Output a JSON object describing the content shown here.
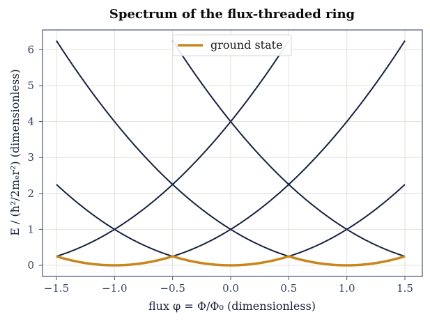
{
  "chart_data": {
    "type": "line",
    "title": "Spectrum of the flux-threaded ring",
    "xlabel": "flux φ = Φ/Φ₀ (dimensionless)",
    "ylabel": "E / (ħ²/2mₑr²) (dimensionless)",
    "xlim": [
      -1.62,
      1.65
    ],
    "ylim": [
      -0.31,
      6.55
    ],
    "xticks": [
      -1.5,
      -1.0,
      -0.5,
      0.0,
      0.5,
      1.0,
      1.5
    ],
    "xtick_labels": [
      "−1.5",
      "−1.0",
      "−0.5",
      "0.0",
      "0.5",
      "1.0",
      "1.5"
    ],
    "yticks": [
      0,
      1,
      2,
      3,
      4,
      5,
      6
    ],
    "ytick_labels": [
      "0",
      "1",
      "2",
      "3",
      "4",
      "5",
      "6"
    ],
    "grid": true,
    "legend": {
      "position": "top-center",
      "entries": [
        "ground state"
      ]
    },
    "x_domain": [
      -1.5,
      1.5
    ],
    "levels": [
      {
        "m": -1,
        "formula": "E = (m - φ)²"
      },
      {
        "m": 0,
        "formula": "E = (m - φ)²"
      },
      {
        "m": 1,
        "formula": "E = (m - φ)²"
      },
      {
        "m": 2,
        "formula": "E = (m - φ)²"
      },
      {
        "m": -2,
        "formula": "E = (m - φ)²"
      }
    ],
    "series": [
      {
        "name": "ground state",
        "x": [
          -1.5,
          -1.25,
          -1.0,
          -0.75,
          -0.5,
          -0.25,
          0.0,
          0.25,
          0.5,
          0.75,
          1.0,
          1.25,
          1.5
        ],
        "values": [
          0.25,
          0.0625,
          0,
          0.0625,
          0.25,
          0.0625,
          0,
          0.0625,
          0.25,
          0.0625,
          0,
          0.0625,
          0.25
        ]
      }
    ],
    "colors": {
      "levels": "#16213e",
      "ground_state": "#c8861e",
      "frame": "#4a5475",
      "grid": "#dedbd2"
    }
  }
}
